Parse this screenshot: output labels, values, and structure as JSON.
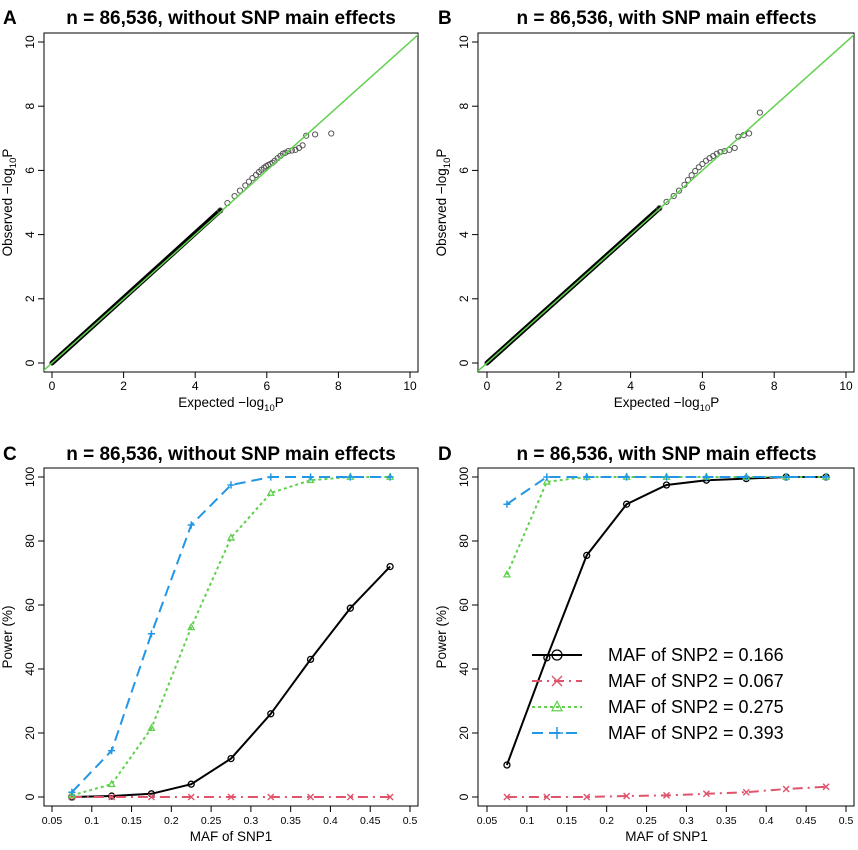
{
  "colors": {
    "black": "#000000",
    "red": "#DF536B",
    "green": "#61D04F",
    "blue": "#2297E6",
    "grey": "#555555"
  },
  "chart_data": [
    {
      "type": "scatter",
      "panel_letter": "A",
      "title": "n = 86,536, without SNP main effects",
      "xlabel_prefix": "Expected",
      "ylabel_prefix": "Observed",
      "axis_minus": "−",
      "log_text": "log",
      "log_sub": "10",
      "log_p": "P",
      "xlim": [
        0,
        10
      ],
      "ylim": [
        0,
        10
      ],
      "xticks": [
        "0",
        "2",
        "4",
        "6",
        "8",
        "10"
      ],
      "yticks": [
        "0",
        "2",
        "4",
        "6",
        "8",
        "10"
      ],
      "reference_line": "y = x",
      "points": [
        [
          4.7,
          4.75
        ],
        [
          4.9,
          4.98
        ],
        [
          5.1,
          5.2
        ],
        [
          5.25,
          5.37
        ],
        [
          5.4,
          5.53
        ],
        [
          5.5,
          5.65
        ],
        [
          5.6,
          5.76
        ],
        [
          5.7,
          5.86
        ],
        [
          5.78,
          5.95
        ],
        [
          5.85,
          6.02
        ],
        [
          5.92,
          6.08
        ],
        [
          5.98,
          6.13
        ],
        [
          6.04,
          6.17
        ],
        [
          6.1,
          6.2
        ],
        [
          6.16,
          6.24
        ],
        [
          6.22,
          6.3
        ],
        [
          6.3,
          6.38
        ],
        [
          6.38,
          6.45
        ],
        [
          6.45,
          6.52
        ],
        [
          6.52,
          6.55
        ],
        [
          6.6,
          6.6
        ],
        [
          6.7,
          6.62
        ],
        [
          6.8,
          6.64
        ],
        [
          6.9,
          6.7
        ],
        [
          7.0,
          6.78
        ],
        [
          7.1,
          7.08
        ],
        [
          7.35,
          7.12
        ],
        [
          7.8,
          7.15
        ]
      ]
    },
    {
      "type": "scatter",
      "panel_letter": "B",
      "title": "n = 86,536, with SNP main effects",
      "xlabel_prefix": "Expected",
      "ylabel_prefix": "Observed",
      "axis_minus": "−",
      "log_text": "log",
      "log_sub": "10",
      "log_p": "P",
      "xlim": [
        0,
        10
      ],
      "ylim": [
        0,
        10
      ],
      "xticks": [
        "0",
        "2",
        "4",
        "6",
        "8",
        "10"
      ],
      "yticks": [
        "0",
        "2",
        "4",
        "6",
        "8",
        "10"
      ],
      "reference_line": "y = x",
      "points": [
        [
          4.8,
          4.82
        ],
        [
          5.0,
          5.02
        ],
        [
          5.2,
          5.2
        ],
        [
          5.35,
          5.37
        ],
        [
          5.5,
          5.55
        ],
        [
          5.6,
          5.7
        ],
        [
          5.7,
          5.85
        ],
        [
          5.8,
          5.98
        ],
        [
          5.9,
          6.1
        ],
        [
          6.0,
          6.2
        ],
        [
          6.1,
          6.3
        ],
        [
          6.2,
          6.38
        ],
        [
          6.3,
          6.45
        ],
        [
          6.4,
          6.52
        ],
        [
          6.5,
          6.57
        ],
        [
          6.62,
          6.6
        ],
        [
          6.75,
          6.64
        ],
        [
          6.9,
          6.7
        ],
        [
          7.0,
          7.05
        ],
        [
          7.15,
          7.1
        ],
        [
          7.3,
          7.15
        ],
        [
          7.6,
          7.8
        ]
      ]
    },
    {
      "type": "line",
      "panel_letter": "C",
      "title": "n = 86,536, without SNP main effects",
      "xlabel": "MAF of SNP1",
      "ylabel": "Power (%)",
      "xlim": [
        0.05,
        0.5
      ],
      "ylim": [
        0,
        100
      ],
      "xticks": [
        "0.05",
        "0.1",
        "0.15",
        "0.2",
        "0.25",
        "0.3",
        "0.35",
        "0.4",
        "0.45",
        "0.5"
      ],
      "yticks": [
        "0",
        "20",
        "40",
        "60",
        "80",
        "100"
      ],
      "x": [
        0.075,
        0.125,
        0.175,
        0.225,
        0.275,
        0.325,
        0.375,
        0.425,
        0.475
      ],
      "series": [
        {
          "name": "MAF of SNP2 = 0.166",
          "values": [
            0,
            0.3,
            1,
            4,
            12,
            26,
            43,
            59,
            72
          ]
        },
        {
          "name": "MAF of SNP2 = 0.067",
          "values": [
            0,
            0,
            0,
            0,
            0,
            0,
            0,
            0,
            0
          ]
        },
        {
          "name": "MAF of SNP2 = 0.275",
          "values": [
            0.5,
            4,
            21.5,
            53,
            81,
            95,
            99,
            100,
            100
          ]
        },
        {
          "name": "MAF of SNP2 = 0.393",
          "values": [
            1.5,
            14.5,
            51,
            85,
            97.5,
            100,
            100,
            100,
            100
          ]
        }
      ]
    },
    {
      "type": "line",
      "panel_letter": "D",
      "title": "n = 86,536, with SNP main effects",
      "xlabel": "MAF of SNP1",
      "ylabel": "Power (%)",
      "xlim": [
        0.05,
        0.5
      ],
      "ylim": [
        0,
        100
      ],
      "xticks": [
        "0.05",
        "0.1",
        "0.15",
        "0.2",
        "0.25",
        "0.3",
        "0.35",
        "0.4",
        "0.45",
        "0.5"
      ],
      "yticks": [
        "0",
        "20",
        "40",
        "60",
        "80",
        "100"
      ],
      "x": [
        0.075,
        0.125,
        0.175,
        0.225,
        0.275,
        0.325,
        0.375,
        0.425,
        0.475
      ],
      "legend": "center-right",
      "series": [
        {
          "name": "MAF of SNP2 = 0.166",
          "values": [
            10,
            43.5,
            75.5,
            91.5,
            97.5,
            99,
            99.5,
            100,
            100
          ]
        },
        {
          "name": "MAF of SNP2 = 0.067",
          "values": [
            0,
            0,
            0,
            0.3,
            0.5,
            1,
            1.5,
            2.5,
            3.2
          ]
        },
        {
          "name": "MAF of SNP2 = 0.275",
          "values": [
            69.5,
            98.5,
            100,
            100,
            100,
            100,
            100,
            100,
            100
          ]
        },
        {
          "name": "MAF of SNP2 = 0.393",
          "values": [
            91.5,
            100,
            100,
            100,
            100,
            100,
            100,
            100,
            100
          ]
        }
      ]
    }
  ]
}
